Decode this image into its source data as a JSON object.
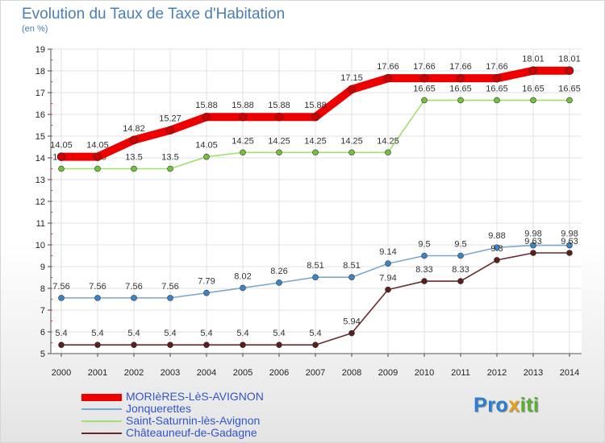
{
  "header": {
    "title": "Evolution du Taux de Taxe d'Habitation",
    "subtitle": "(en %)"
  },
  "logo": {
    "text": "Proxiti",
    "letters": [
      {
        "ch": "P",
        "color": "#2a7fd4"
      },
      {
        "ch": "r",
        "color": "#2a7fd4"
      },
      {
        "ch": "o",
        "color": "#2a7fd4"
      },
      {
        "ch": "x",
        "color": "#e8a020"
      },
      {
        "ch": "i",
        "color": "#58b030"
      },
      {
        "ch": "t",
        "color": "#58b030"
      },
      {
        "ch": "i",
        "color": "#58b030"
      }
    ]
  },
  "chart_data": {
    "type": "line",
    "x": [
      2000,
      2001,
      2002,
      2003,
      2004,
      2005,
      2006,
      2007,
      2008,
      2009,
      2010,
      2011,
      2012,
      2013,
      2014
    ],
    "ylim": [
      5,
      19
    ],
    "yticks": [
      5,
      6,
      7,
      8,
      9,
      10,
      11,
      12,
      13,
      14,
      15,
      16,
      17,
      18,
      19
    ],
    "series": [
      {
        "name": "MORIèRES-LèS-AVIGNON",
        "color": "#ee0000",
        "marker": "#cc0000",
        "thick": true,
        "values": [
          14.05,
          14.05,
          14.82,
          15.27,
          15.88,
          15.88,
          15.88,
          15.88,
          17.15,
          17.66,
          17.66,
          17.66,
          17.66,
          18.01,
          18.01
        ],
        "labels": [
          "14.05",
          "14.05",
          "14.82",
          "15.27",
          "15.88",
          "15.88",
          "15.88",
          "15.88",
          "17.15",
          "17.66",
          "17.66",
          "17.66",
          "17.66",
          "18.01",
          "18.01"
        ]
      },
      {
        "name": "Jonquerettes",
        "color": "#7ba7d1",
        "marker": "#3a85c9",
        "thick": false,
        "values": [
          7.56,
          7.56,
          7.56,
          7.56,
          7.79,
          8.02,
          8.26,
          8.51,
          8.51,
          9.14,
          9.5,
          9.5,
          9.88,
          9.98,
          9.98
        ],
        "labels": [
          "7.56",
          "7.56",
          "7.56",
          "7.56",
          "7.79",
          "8.02",
          "8.26",
          "8.51",
          "8.51",
          "9.14",
          "9.5",
          "9.5",
          "9.88",
          "9.98",
          "9.98"
        ]
      },
      {
        "name": "Saint-Saturnin-lès-Avignon",
        "color": "#9fe070",
        "marker": "#6fc23a",
        "thick": false,
        "values": [
          13.5,
          13.5,
          13.5,
          13.5,
          14.05,
          14.25,
          14.25,
          14.25,
          14.25,
          14.25,
          16.65,
          16.65,
          16.65,
          16.65,
          16.65
        ],
        "labels": [
          "13.5",
          "13.5",
          "13.5",
          "13.5",
          "14.05",
          "14.25",
          "14.25",
          "14.25",
          "14.25",
          "14.25",
          "16.65",
          "16.65",
          "16.65",
          "16.65",
          "16.65"
        ]
      },
      {
        "name": "Châteauneuf-de-Gadagne",
        "color": "#6a2a2a",
        "marker": "#5a1e1e",
        "thick": false,
        "values": [
          5.4,
          5.4,
          5.4,
          5.4,
          5.4,
          5.4,
          5.4,
          5.4,
          5.94,
          7.94,
          8.33,
          8.33,
          9.3,
          9.63,
          9.63
        ],
        "labels": [
          "5.4",
          "5.4",
          "5.4",
          "5.4",
          "5.4",
          "5.4",
          "5.4",
          "5.4",
          "5.94",
          "7.94",
          "8.33",
          "8.33",
          "9.3",
          "9.63",
          "9.63"
        ]
      }
    ]
  }
}
